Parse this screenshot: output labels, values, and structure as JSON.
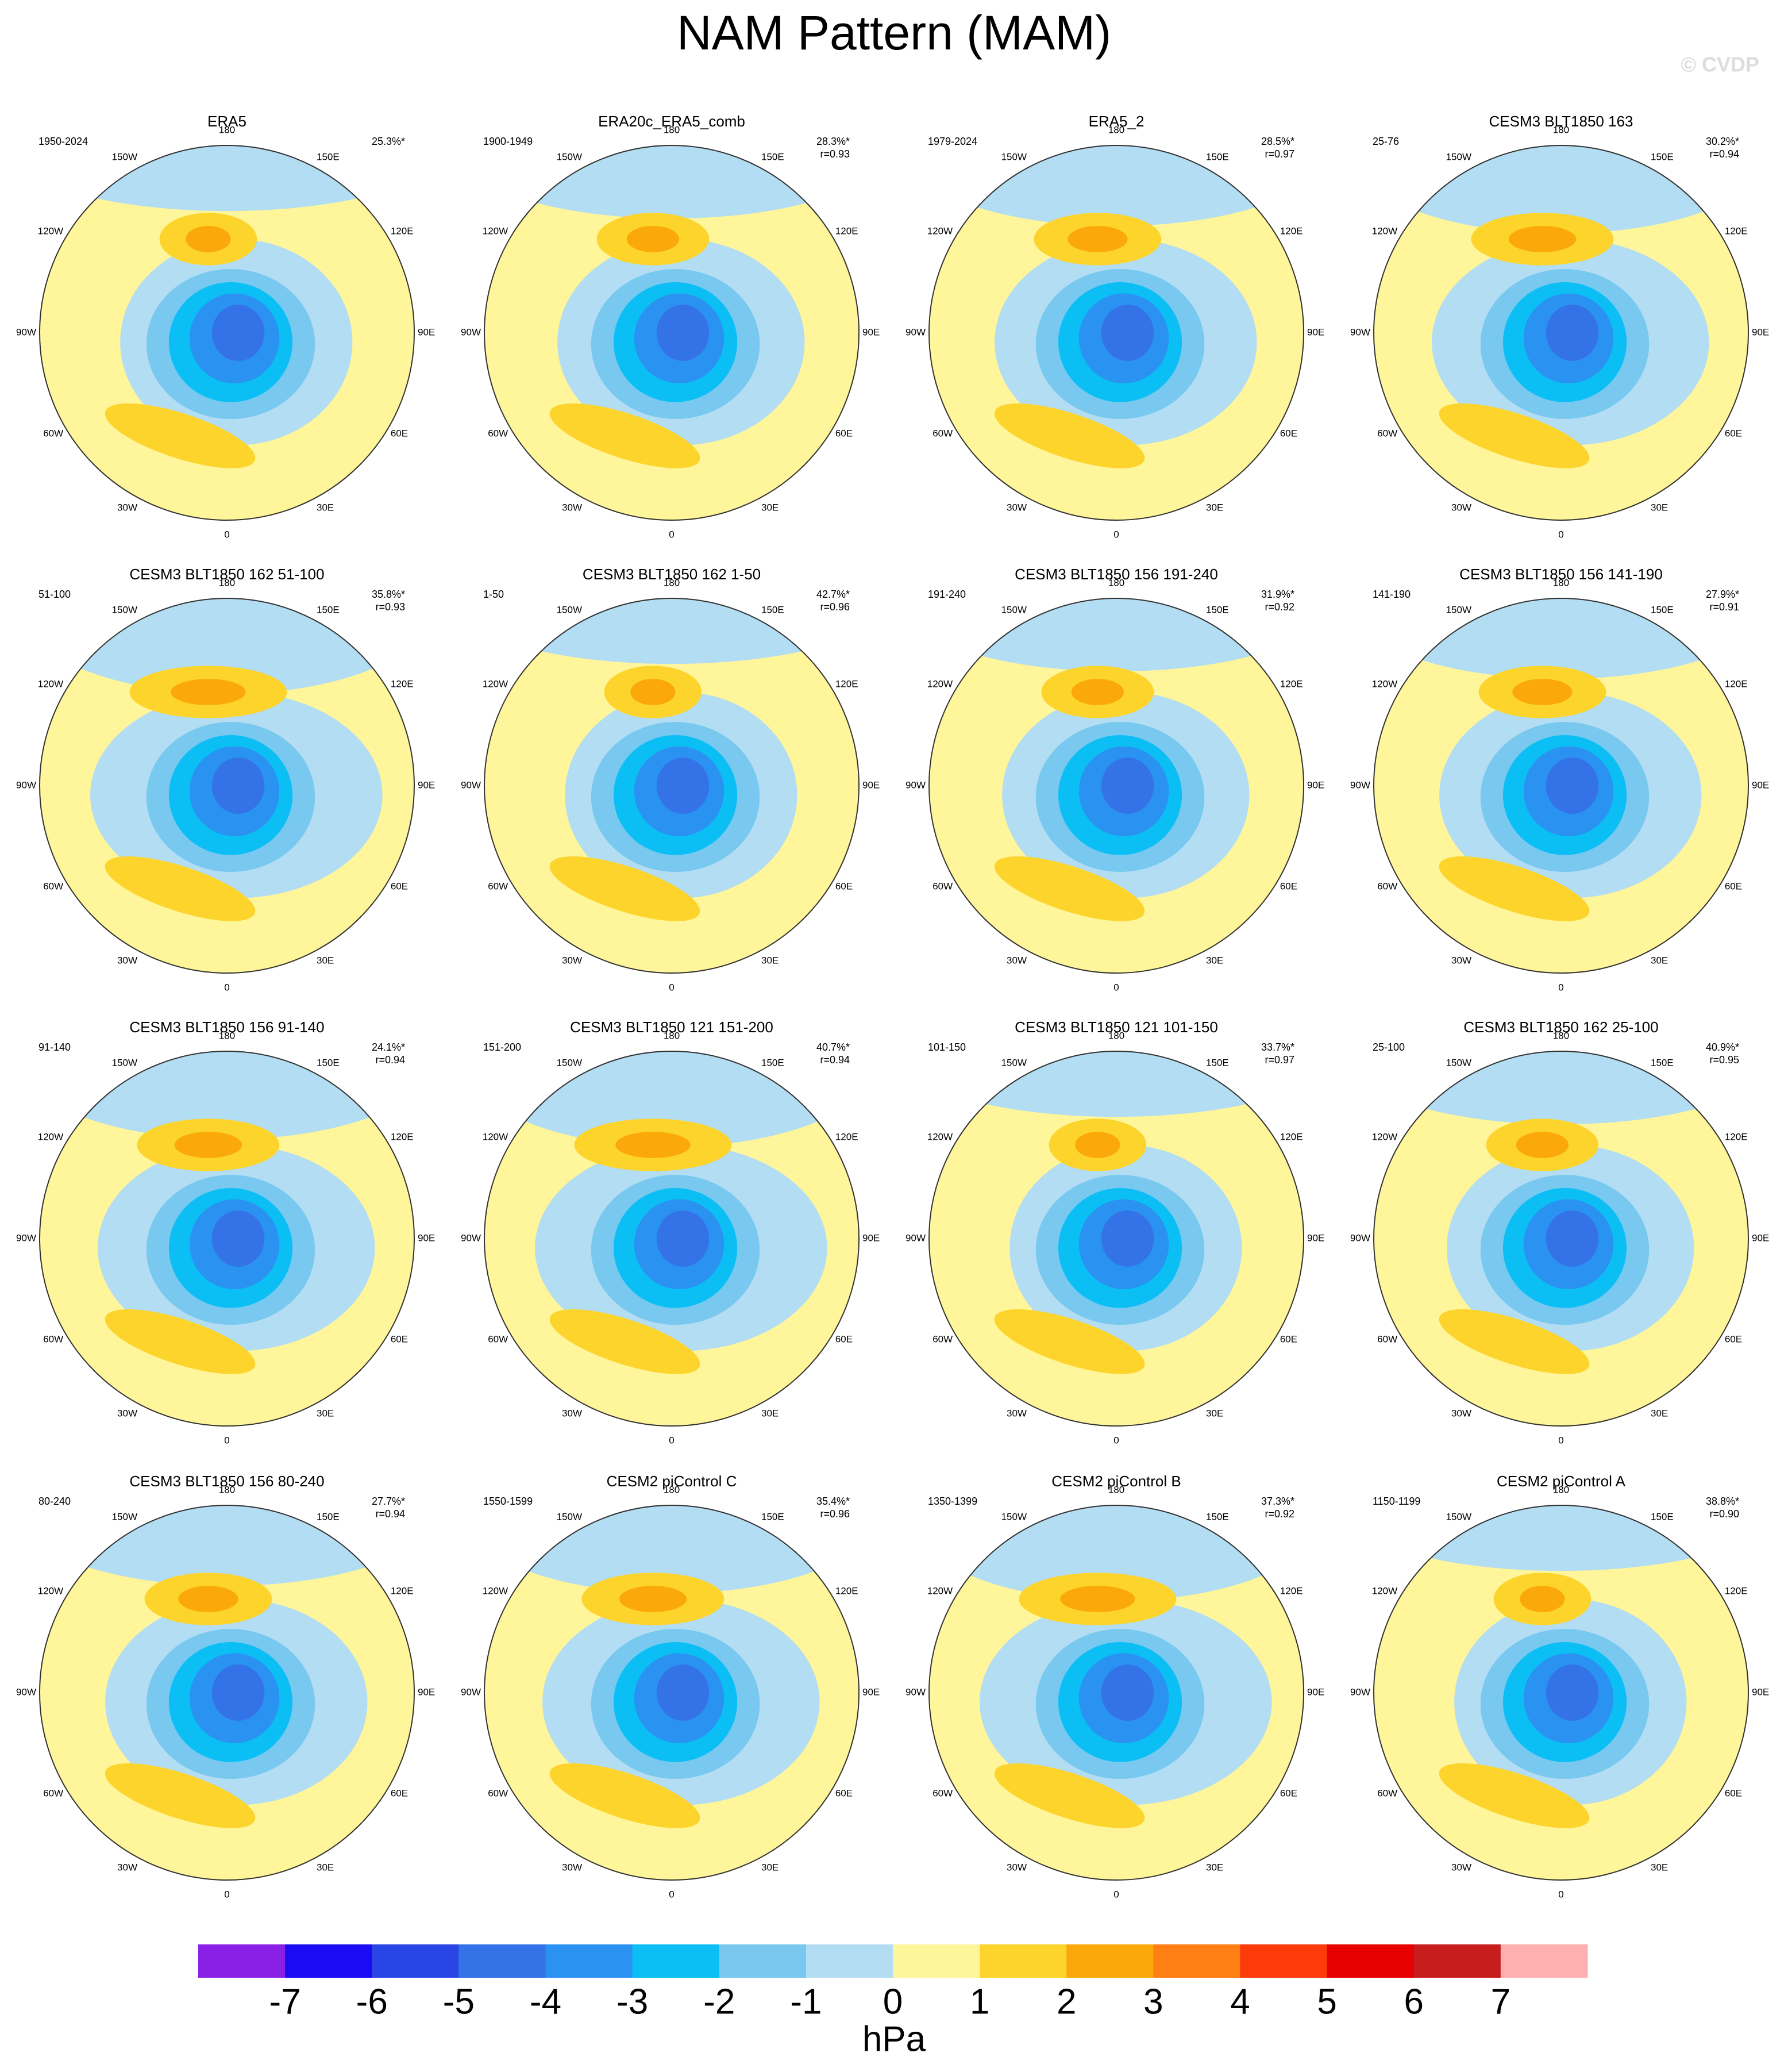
{
  "title": "NAM Pattern (MAM)",
  "watermark": "© CVDP",
  "longitude_labels": [
    "180",
    "150E",
    "120E",
    "90E",
    "60E",
    "30E",
    "0",
    "30W",
    "60W",
    "90W",
    "120W",
    "150W"
  ],
  "panels": [
    {
      "title": "ERA5",
      "period": "1950-2024",
      "pct": "25.3%*"
    },
    {
      "title": "ERA20c_ERA5_comb",
      "period": "1900-1949",
      "pct": "28.3%*",
      "r": "r=0.93"
    },
    {
      "title": "ERA5_2",
      "period": "1979-2024",
      "pct": "28.5%*",
      "r": "r=0.97"
    },
    {
      "title": "CESM3 BLT1850 163",
      "period": "25-76",
      "pct": "30.2%*",
      "r": "r=0.94"
    },
    {
      "title": "CESM3 BLT1850 162 51-100",
      "period": "51-100",
      "pct": "35.8%*",
      "r": "r=0.93"
    },
    {
      "title": "CESM3 BLT1850 162 1-50",
      "period": "1-50",
      "pct": "42.7%*",
      "r": "r=0.96"
    },
    {
      "title": "CESM3 BLT1850 156 191-240",
      "period": "191-240",
      "pct": "31.9%*",
      "r": "r=0.92"
    },
    {
      "title": "CESM3 BLT1850 156 141-190",
      "period": "141-190",
      "pct": "27.9%*",
      "r": "r=0.91"
    },
    {
      "title": "CESM3 BLT1850 156 91-140",
      "period": "91-140",
      "pct": "24.1%*",
      "r": "r=0.94"
    },
    {
      "title": "CESM3 BLT1850 121 151-200",
      "period": "151-200",
      "pct": "40.7%*",
      "r": "r=0.94"
    },
    {
      "title": "CESM3 BLT1850 121 101-150",
      "period": "101-150",
      "pct": "33.7%*",
      "r": "r=0.97"
    },
    {
      "title": "CESM3 BLT1850 162 25-100",
      "period": "25-100",
      "pct": "40.9%*",
      "r": "r=0.95"
    },
    {
      "title": "CESM3 BLT1850 156 80-240",
      "period": "80-240",
      "pct": "27.7%*",
      "r": "r=0.94"
    },
    {
      "title": "CESM2 piControl C",
      "period": "1550-1599",
      "pct": "35.4%*",
      "r": "r=0.96"
    },
    {
      "title": "CESM2 piControl B",
      "period": "1350-1399",
      "pct": "37.3%*",
      "r": "r=0.92"
    },
    {
      "title": "CESM2 piControl A",
      "period": "1150-1199",
      "pct": "38.8%*",
      "r": "r=0.90"
    }
  ],
  "colorbar": {
    "levels": [
      -7,
      -6,
      -5,
      -4,
      -3,
      -2,
      -1,
      0,
      1,
      2,
      3,
      4,
      5,
      6,
      7
    ],
    "colors": [
      "#8a1fe6",
      "#1a0bf5",
      "#2a45e6",
      "#3472e8",
      "#2a92f0",
      "#0bbff5",
      "#78c8f0",
      "#b3ddf2",
      "#fff59a",
      "#fcd42c",
      "#fba90a",
      "#ff7f14",
      "#ff3a0a",
      "#e80000",
      "#c81d1d",
      "#ffb0b0"
    ],
    "units": "hPa"
  }
}
